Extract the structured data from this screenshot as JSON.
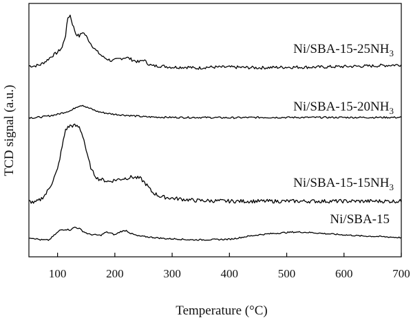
{
  "chart_data": {
    "type": "line",
    "title": "",
    "xlabel": "Temperature (°C)",
    "ylabel": "TCD signal (a.u.)",
    "xlim": [
      50,
      700
    ],
    "x_ticks": [
      "100",
      "200",
      "300",
      "400",
      "500",
      "600",
      "700"
    ],
    "y_ticks_shown": false,
    "grid": false,
    "series": [
      {
        "name": "Ni/SBA-15-25NH3",
        "label_main": "Ni/SBA-15-25NH",
        "label_sub": "3",
        "points": [
          [
            50,
            0.0
          ],
          [
            60,
            0.0
          ],
          [
            70,
            0.02
          ],
          [
            80,
            0.08
          ],
          [
            90,
            0.16
          ],
          [
            100,
            0.22
          ],
          [
            108,
            0.3
          ],
          [
            114,
            0.5
          ],
          [
            118,
            0.78
          ],
          [
            122,
            0.82
          ],
          [
            126,
            0.68
          ],
          [
            132,
            0.52
          ],
          [
            138,
            0.48
          ],
          [
            144,
            0.55
          ],
          [
            150,
            0.48
          ],
          [
            158,
            0.36
          ],
          [
            168,
            0.24
          ],
          [
            180,
            0.14
          ],
          [
            195,
            0.08
          ],
          [
            210,
            0.12
          ],
          [
            220,
            0.14
          ],
          [
            230,
            0.1
          ],
          [
            242,
            0.06
          ],
          [
            250,
            0.1
          ],
          [
            256,
            0.05
          ],
          [
            265,
            0.0
          ],
          [
            280,
            0.0
          ],
          [
            300,
            -0.02
          ],
          [
            330,
            -0.02
          ],
          [
            340,
            -0.04
          ],
          [
            360,
            -0.02
          ],
          [
            400,
            -0.02
          ],
          [
            450,
            -0.03
          ],
          [
            500,
            -0.02
          ],
          [
            550,
            -0.02
          ],
          [
            600,
            -0.01
          ],
          [
            650,
            0.0
          ],
          [
            700,
            0.02
          ]
        ]
      },
      {
        "name": "Ni/SBA-15-20NH3",
        "label_main": "Ni/SBA-15-20NH",
        "label_sub": "3",
        "points": [
          [
            50,
            0.0
          ],
          [
            60,
            -0.01
          ],
          [
            70,
            0.01
          ],
          [
            80,
            0.03
          ],
          [
            90,
            0.06
          ],
          [
            100,
            0.09
          ],
          [
            110,
            0.14
          ],
          [
            118,
            0.18
          ],
          [
            125,
            0.21
          ],
          [
            132,
            0.3
          ],
          [
            138,
            0.34
          ],
          [
            144,
            0.36
          ],
          [
            150,
            0.3
          ],
          [
            160,
            0.24
          ],
          [
            170,
            0.17
          ],
          [
            180,
            0.14
          ],
          [
            190,
            0.11
          ],
          [
            200,
            0.09
          ],
          [
            215,
            0.07
          ],
          [
            230,
            0.05
          ],
          [
            250,
            0.02
          ],
          [
            270,
            0.01
          ],
          [
            300,
            0.0
          ],
          [
            350,
            0.0
          ],
          [
            400,
            -0.01
          ],
          [
            450,
            0.0
          ],
          [
            500,
            0.0
          ],
          [
            600,
            0.0
          ],
          [
            700,
            0.0
          ]
        ]
      },
      {
        "name": "Ni/SBA-15-15NH3",
        "label_main": "Ni/SBA-15-15NH",
        "label_sub": "3",
        "points": [
          [
            50,
            0.0
          ],
          [
            60,
            -0.02
          ],
          [
            70,
            0.02
          ],
          [
            80,
            0.1
          ],
          [
            90,
            0.24
          ],
          [
            100,
            0.42
          ],
          [
            108,
            0.72
          ],
          [
            114,
            0.95
          ],
          [
            122,
            1.0
          ],
          [
            130,
            1.0
          ],
          [
            138,
            0.98
          ],
          [
            145,
            0.85
          ],
          [
            152,
            0.6
          ],
          [
            160,
            0.4
          ],
          [
            170,
            0.3
          ],
          [
            180,
            0.28
          ],
          [
            190,
            0.26
          ],
          [
            200,
            0.28
          ],
          [
            215,
            0.3
          ],
          [
            230,
            0.32
          ],
          [
            245,
            0.3
          ],
          [
            255,
            0.22
          ],
          [
            265,
            0.12
          ],
          [
            280,
            0.06
          ],
          [
            300,
            0.04
          ],
          [
            340,
            0.01
          ],
          [
            400,
            0.0
          ],
          [
            450,
            0.0
          ],
          [
            500,
            0.0
          ],
          [
            550,
            0.0
          ],
          [
            600,
            0.0
          ],
          [
            700,
            0.0
          ]
        ]
      },
      {
        "name": "Ni/SBA-15",
        "label_main": "Ni/SBA-15",
        "label_sub": "",
        "points": [
          [
            50,
            0.0
          ],
          [
            60,
            -0.03
          ],
          [
            70,
            -0.08
          ],
          [
            85,
            -0.09
          ],
          [
            95,
            0.1
          ],
          [
            105,
            0.28
          ],
          [
            115,
            0.3
          ],
          [
            122,
            0.28
          ],
          [
            130,
            0.38
          ],
          [
            138,
            0.33
          ],
          [
            145,
            0.22
          ],
          [
            155,
            0.12
          ],
          [
            165,
            0.1
          ],
          [
            175,
            0.08
          ],
          [
            185,
            0.2
          ],
          [
            193,
            0.16
          ],
          [
            200,
            0.1
          ],
          [
            210,
            0.22
          ],
          [
            220,
            0.26
          ],
          [
            228,
            0.15
          ],
          [
            240,
            0.06
          ],
          [
            255,
            0.03
          ],
          [
            270,
            0.0
          ],
          [
            290,
            -0.04
          ],
          [
            310,
            -0.05
          ],
          [
            330,
            -0.08
          ],
          [
            350,
            -0.08
          ],
          [
            380,
            -0.07
          ],
          [
            400,
            -0.06
          ],
          [
            410,
            -0.03
          ],
          [
            430,
            0.04
          ],
          [
            450,
            0.1
          ],
          [
            470,
            0.14
          ],
          [
            490,
            0.17
          ],
          [
            510,
            0.2
          ],
          [
            525,
            0.2
          ],
          [
            545,
            0.18
          ],
          [
            570,
            0.14
          ],
          [
            600,
            0.1
          ],
          [
            630,
            0.06
          ],
          [
            660,
            0.04
          ],
          [
            700,
            0.0
          ]
        ]
      }
    ]
  }
}
